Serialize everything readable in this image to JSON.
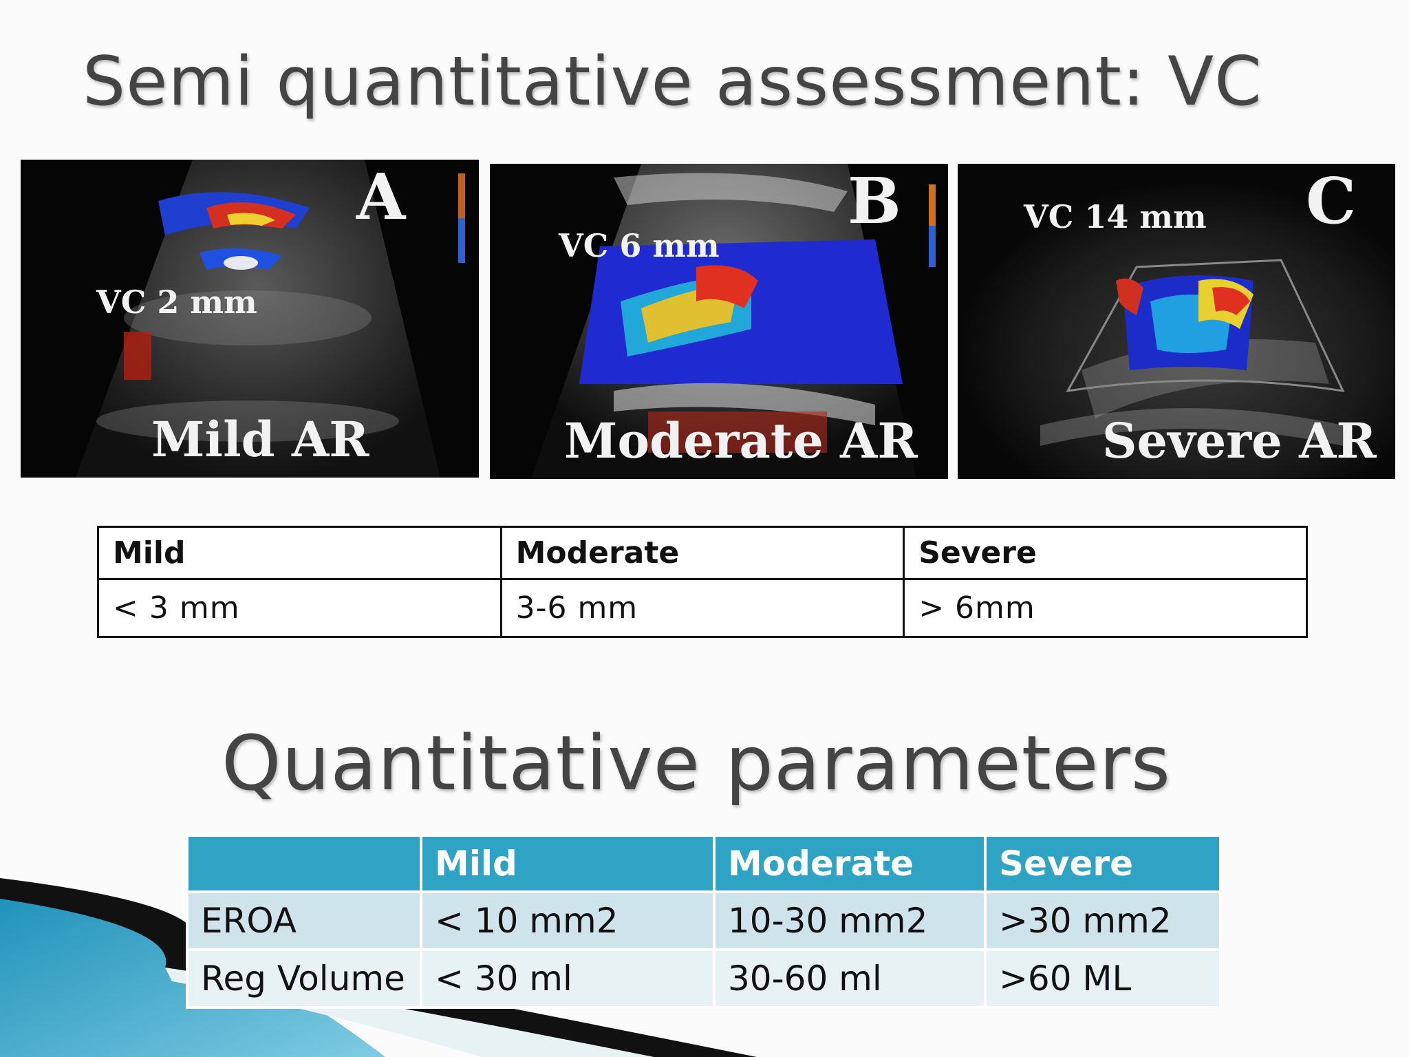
{
  "slide": {
    "title": "Semi quantitative assessment: VC",
    "subtitle": "Quantitative parameters"
  },
  "panels": [
    {
      "letter": "A",
      "vc_label": "VC 2 mm",
      "grade": "Mild AR"
    },
    {
      "letter": "B",
      "vc_label": "VC 6 mm",
      "grade": "Moderate AR"
    },
    {
      "letter": "C",
      "vc_label": "VC 14 mm",
      "grade": "Severe AR"
    }
  ],
  "vc_table": {
    "headers": [
      "Mild",
      "Moderate",
      "Severe"
    ],
    "values": [
      "< 3 mm",
      "3-6 mm",
      "> 6mm"
    ]
  },
  "quant_table": {
    "headers": [
      "",
      "Mild",
      "Moderate",
      "Severe"
    ],
    "rows": [
      [
        "EROA",
        "< 10 mm2",
        "10-30 mm2",
        ">30 mm2"
      ],
      [
        "Reg Volume",
        "< 30 ml",
        "30-60 ml",
        ">60 ML"
      ]
    ]
  },
  "colors": {
    "table_header": "#2ea3c4",
    "table_row_1": "#cfe3ea",
    "table_row_2": "#e8f1f4",
    "title_text": "#444444"
  }
}
